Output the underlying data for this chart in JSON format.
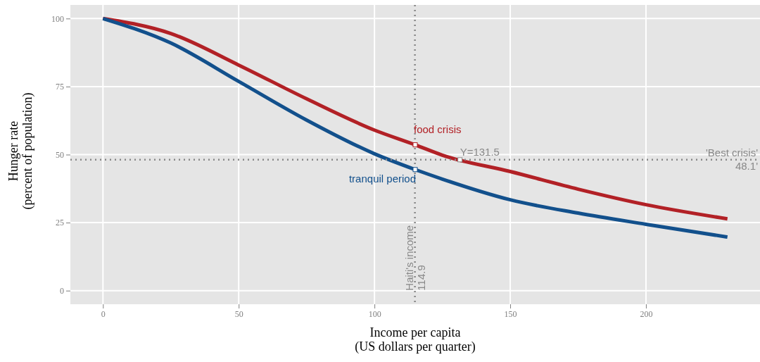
{
  "chart_data": {
    "type": "line",
    "xlabel": "Income per capita\n(US dollars per quarter)",
    "ylabel": "Hunger rate\n(percent of population)",
    "x": [
      0,
      25,
      50,
      75,
      100,
      115,
      125,
      150,
      175,
      200,
      230
    ],
    "series": [
      {
        "name": "food crisis",
        "color": "#b22126",
        "values": [
          100,
          94.5,
          82.9,
          70.5,
          59,
          53.6,
          49.8,
          43.8,
          37.3,
          31.6,
          26.4
        ]
      },
      {
        "name": "tranquil period",
        "color": "#12508c",
        "values": [
          100,
          91,
          76.9,
          62.7,
          50.3,
          44.5,
          41,
          33.4,
          28.5,
          24.4,
          19.7
        ]
      }
    ],
    "xlim": [
      -12,
      242
    ],
    "ylim": [
      -5,
      105
    ],
    "xticks": [
      0,
      50,
      100,
      150,
      200
    ],
    "yticks": [
      0,
      25,
      50,
      75,
      100
    ],
    "grid": true,
    "marker": "none",
    "line_style": "solid",
    "ref_lines": [
      {
        "axis": "x",
        "value": 114.9,
        "label": "Haiti's income\n114.9",
        "color": "#888888",
        "line_style": "dotted"
      },
      {
        "axis": "y",
        "value": 48.1,
        "label": "'Best crisis'\n48.1'",
        "color": "#888888",
        "line_style": "dotted"
      }
    ],
    "annotations": [
      {
        "text": "Y=131.5",
        "x": 131.5,
        "y": 48.1
      }
    ]
  }
}
